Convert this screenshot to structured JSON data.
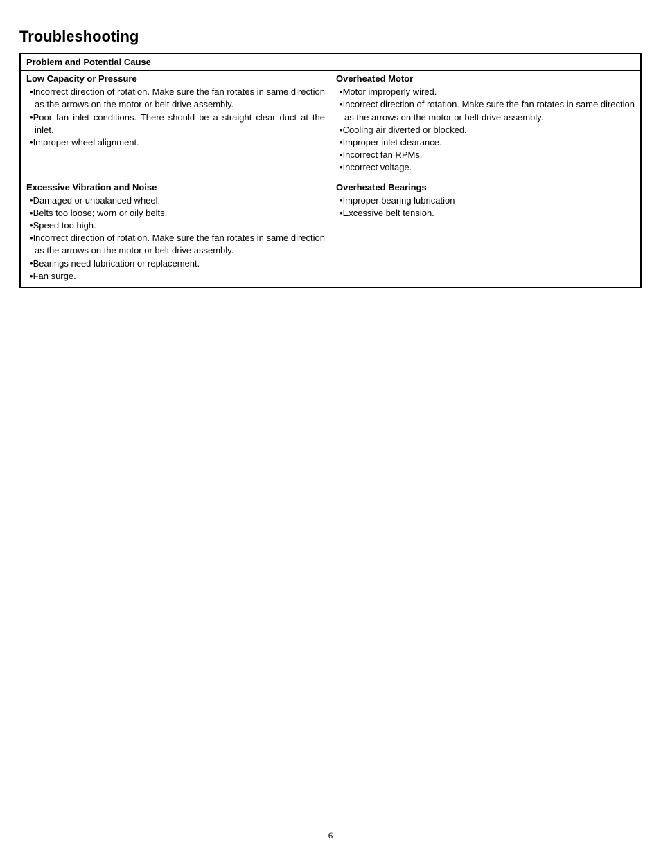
{
  "page": {
    "title": "Troubleshooting",
    "number": "6",
    "background_color": "#ffffff",
    "text_color": "#000000",
    "border_color": "#000000"
  },
  "table": {
    "header": "Problem and Potential Cause",
    "cells": {
      "r1c1": {
        "title": "Low Capacity or Pressure",
        "items": [
          "Incorrect direction of rotation. Make sure the fan rotates in same direction as the arrows on the motor or belt drive assembly.",
          "Poor fan inlet conditions. There should be a straight clear duct at the inlet.",
          "Improper wheel alignment."
        ]
      },
      "r1c2": {
        "title": "Overheated Motor",
        "items": [
          "Motor improperly wired.",
          "Incorrect direction of rotation. Make sure the fan rotates in same direction as the arrows on the motor or belt drive assembly.",
          "Cooling air diverted or blocked.",
          "Improper inlet clearance.",
          "Incorrect fan RPMs.",
          "Incorrect voltage."
        ]
      },
      "r2c1": {
        "title": "Excessive Vibration and Noise",
        "items": [
          "Damaged or unbalanced wheel.",
          "Belts too loose; worn or oily belts.",
          "Speed too high.",
          "Incorrect direction of rotation. Make sure the fan rotates in same direction as the arrows on the motor or belt drive assembly.",
          "Bearings need lubrication or replacement.",
          "Fan surge."
        ]
      },
      "r2c2": {
        "title": "Overheated Bearings",
        "items": [
          "Improper bearing lubrication",
          "Excessive belt tension."
        ]
      }
    }
  }
}
